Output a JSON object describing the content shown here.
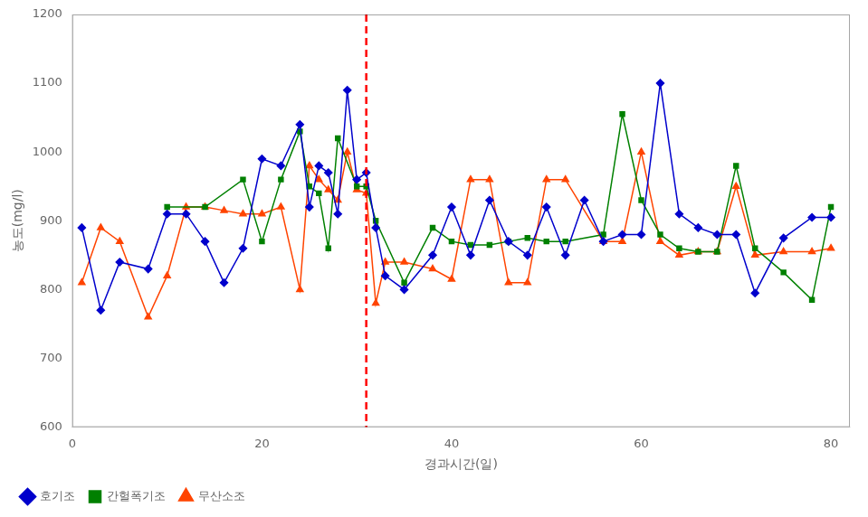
{
  "chart_data": {
    "type": "line",
    "xlabel": "경과시간(일)",
    "ylabel": "농도(mg/l)",
    "xlim": [
      0,
      82
    ],
    "ylim": [
      600,
      1200
    ],
    "xticks": [
      0,
      20,
      40,
      60,
      80
    ],
    "yticks": [
      600,
      700,
      800,
      900,
      1000,
      1100,
      1200
    ],
    "grid": false,
    "legend": "lower left",
    "vlines": [
      {
        "x": 31,
        "color": "red",
        "line_style": "dashed"
      }
    ],
    "series": [
      {
        "name": "호기조",
        "color": "#0000cc",
        "marker": "diamond",
        "x": [
          1,
          3,
          5,
          8,
          10,
          12,
          14,
          16,
          18,
          20,
          22,
          24,
          25,
          26,
          27,
          28,
          29,
          30,
          31,
          32,
          33,
          35,
          38,
          40,
          42,
          44,
          46,
          48,
          50,
          52,
          54,
          56,
          58,
          60,
          62,
          64,
          66,
          68,
          70,
          72,
          75,
          78,
          80
        ],
        "values": [
          890,
          770,
          840,
          830,
          910,
          910,
          870,
          810,
          860,
          990,
          980,
          1040,
          920,
          980,
          970,
          910,
          1090,
          960,
          970,
          890,
          820,
          800,
          850,
          920,
          850,
          930,
          870,
          850,
          920,
          850,
          930,
          870,
          880,
          880,
          1100,
          910,
          890,
          880,
          880,
          795,
          875,
          905,
          905
        ]
      },
      {
        "name": "간헐폭기조",
        "color": "#008000",
        "marker": "square",
        "x": [
          10,
          14,
          18,
          20,
          22,
          24,
          25,
          26,
          27,
          28,
          30,
          31,
          32,
          35,
          38,
          40,
          42,
          44,
          46,
          48,
          50,
          52,
          56,
          58,
          60,
          62,
          64,
          66,
          68,
          70,
          72,
          75,
          78,
          80
        ],
        "values": [
          920,
          920,
          960,
          870,
          960,
          1030,
          950,
          940,
          860,
          1020,
          950,
          950,
          900,
          810,
          890,
          870,
          865,
          865,
          870,
          875,
          870,
          870,
          880,
          1055,
          930,
          880,
          860,
          855,
          855,
          980,
          860,
          825,
          785,
          920
        ]
      },
      {
        "name": "무산소조",
        "color": "#ff4400",
        "marker": "triangle",
        "x": [
          1,
          3,
          5,
          8,
          10,
          12,
          14,
          16,
          18,
          20,
          22,
          24,
          25,
          26,
          27,
          28,
          29,
          30,
          31,
          32,
          33,
          35,
          38,
          40,
          42,
          44,
          46,
          48,
          50,
          52,
          56,
          58,
          60,
          62,
          64,
          66,
          68,
          70,
          72,
          75,
          78,
          80
        ],
        "values": [
          810,
          890,
          870,
          760,
          820,
          920,
          920,
          915,
          910,
          910,
          920,
          800,
          980,
          960,
          945,
          930,
          1000,
          945,
          940,
          780,
          840,
          840,
          830,
          815,
          960,
          960,
          810,
          810,
          960,
          960,
          870,
          870,
          1000,
          870,
          850,
          855,
          855,
          950,
          850,
          855,
          855,
          860
        ]
      }
    ]
  }
}
